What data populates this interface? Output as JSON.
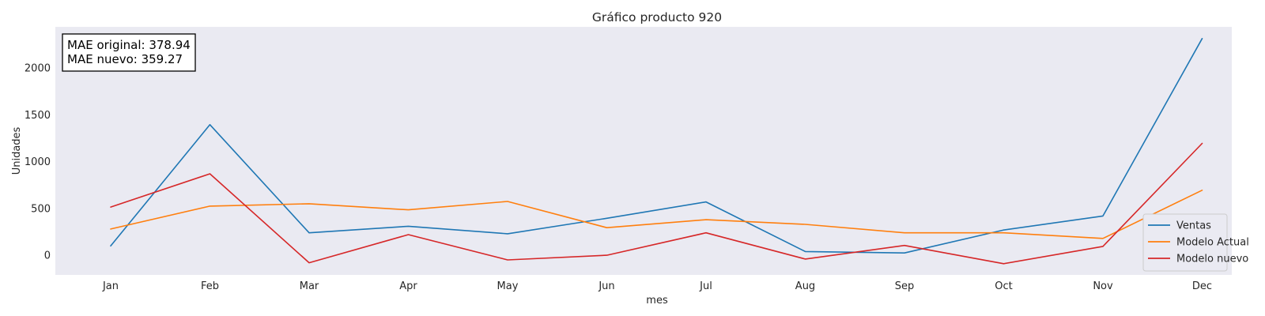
{
  "chart_data": {
    "type": "line",
    "title": "Gráfico producto 920",
    "xlabel": "mes",
    "ylabel": "Unidades",
    "categories": [
      "Jan",
      "Feb",
      "Mar",
      "Apr",
      "May",
      "Jun",
      "Jul",
      "Aug",
      "Sep",
      "Oct",
      "Nov",
      "Dec"
    ],
    "ylim": [
      -210,
      2440
    ],
    "yticks": [
      0,
      500,
      1000,
      1500,
      2000
    ],
    "grid": false,
    "legend_position": "lower-right",
    "series": [
      {
        "name": "Ventas",
        "color": "#1f77b4",
        "values": [
          100,
          1395,
          240,
          310,
          230,
          395,
          570,
          40,
          25,
          270,
          420,
          2315
        ]
      },
      {
        "name": "Modelo Actual",
        "color": "#ff7f0e",
        "values": [
          280,
          525,
          550,
          485,
          575,
          295,
          380,
          330,
          240,
          240,
          180,
          695
        ]
      },
      {
        "name": "Modelo nuevo",
        "color": "#d62728",
        "values": [
          515,
          870,
          -80,
          220,
          -50,
          0,
          240,
          -40,
          105,
          -90,
          95,
          1195
        ]
      }
    ],
    "annotation": {
      "line1": "MAE original: 378.94",
      "line2": "MAE nuevo: 359.27"
    }
  },
  "colors": {
    "plot_background": "#eaeaf2",
    "text": "#262626"
  }
}
